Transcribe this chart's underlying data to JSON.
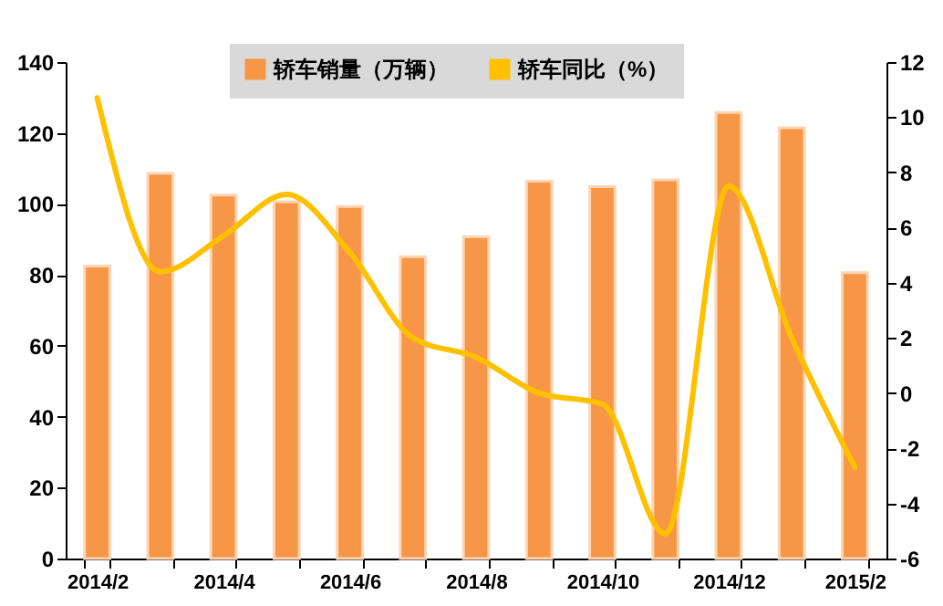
{
  "chart_data": {
    "type": "bar",
    "categories": [
      "2014/2",
      null,
      "2014/4",
      null,
      "2014/6",
      null,
      "2014/8",
      null,
      "2014/10",
      null,
      "2014/12",
      null,
      "2015/2"
    ],
    "series": [
      {
        "name": "轿车销量（万辆）",
        "color": "#f79646",
        "values": [
          82.5,
          108.6,
          102.5,
          100.6,
          99.3,
          85.1,
          90.7,
          106.4,
          104.9,
          106.8,
          125.8,
          121.5,
          80.6
        ]
      },
      {
        "name": "轿车同比（%）",
        "type": "line",
        "axis": "y2",
        "color": "#ffc000",
        "values": [
          10.7,
          4.4,
          5.7,
          7.2,
          5.1,
          2.0,
          1.3,
          0.0,
          -0.4,
          -5.1,
          7.5,
          2.0,
          -2.7
        ]
      }
    ],
    "ylim": [
      0,
      140
    ],
    "yticks": [
      0,
      20,
      40,
      60,
      80,
      100,
      120,
      140
    ],
    "y2lim": [
      -6,
      12
    ],
    "y2ticks": [
      -6,
      -4,
      -2,
      0,
      2,
      4,
      6,
      8,
      10,
      12
    ],
    "grid": false,
    "legend": "top",
    "marker": "none",
    "line_style": "solid"
  }
}
